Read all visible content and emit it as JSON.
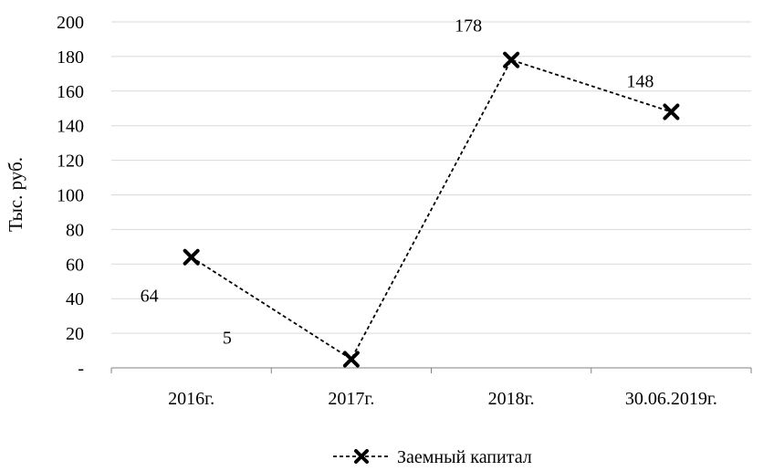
{
  "chart_data": {
    "type": "line",
    "categories": [
      "2016г.",
      "2017г.",
      "2018г.",
      "30.06.2019г."
    ],
    "series": [
      {
        "name": "Заемный капитал",
        "values": [
          64,
          5,
          178,
          148
        ],
        "data_labels": [
          "64",
          "5",
          "178",
          "148"
        ],
        "line_style": "dashed",
        "marker": "x",
        "color": "#000000"
      }
    ],
    "ylabel": "Тыс. руб.",
    "ylim": [
      0,
      200
    ],
    "yticks": [
      0,
      20,
      40,
      60,
      80,
      100,
      120,
      140,
      160,
      180,
      200
    ],
    "ytick_labels": [
      "-",
      "20",
      "40",
      "60",
      "80",
      "100",
      "120",
      "140",
      "160",
      "180",
      "200"
    ],
    "grid": true,
    "legend_position": "bottom"
  }
}
